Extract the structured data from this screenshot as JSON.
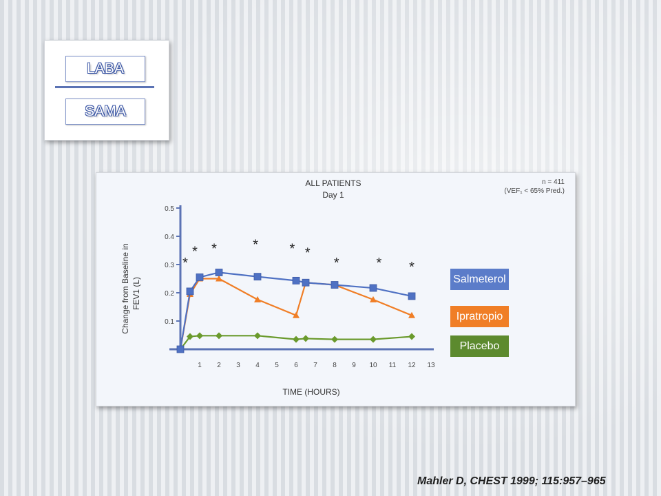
{
  "slide": {
    "abbreviations": [
      "LABA",
      "SAMA"
    ],
    "citation": "Mahler D, CHEST 1999; 115:957–965"
  },
  "chart_data": {
    "type": "line",
    "title": "ALL PATIENTS",
    "subtitle": "Day 1",
    "annotation_line1": "n = 411",
    "annotation_line2": "(VEF₁ < 65% Pred.)",
    "xlabel": "TIME (HOURS)",
    "ylabel_line1": "Change from Baseline in",
    "ylabel_line2": "FEV1 (L)",
    "xlim": [
      0,
      13
    ],
    "ylim": [
      0,
      0.5
    ],
    "xticks": [
      "1",
      "2",
      "3",
      "4",
      "5",
      "6",
      "7",
      "8",
      "9",
      "10",
      "11",
      "12",
      "13"
    ],
    "yticks": [
      "0.1",
      "0.2",
      "0.3",
      "0.4",
      "0.5"
    ],
    "grid": false,
    "legend_position": "right",
    "series": [
      {
        "name": "Salmeterol",
        "color": "#4f71c3",
        "marker": "square",
        "points": [
          [
            0,
            0
          ],
          [
            0.5,
            0.205
          ],
          [
            1,
            0.255
          ],
          [
            2,
            0.272
          ],
          [
            4,
            0.257
          ],
          [
            6,
            0.243
          ],
          [
            6.5,
            0.236
          ],
          [
            8,
            0.228
          ],
          [
            10,
            0.217
          ],
          [
            12,
            0.188
          ]
        ]
      },
      {
        "name": "Ipratropio",
        "color": "#f07e26",
        "marker": "triangle",
        "points": [
          [
            0,
            0
          ],
          [
            0.5,
            0.195
          ],
          [
            1,
            0.25
          ],
          [
            2,
            0.25
          ],
          [
            4,
            0.176
          ],
          [
            6,
            0.12
          ],
          [
            6.5,
            0.236
          ],
          [
            8,
            0.228
          ],
          [
            10,
            0.176
          ],
          [
            12,
            0.12
          ]
        ]
      },
      {
        "name": "Placebo",
        "color": "#6a9a2c",
        "marker": "diamond",
        "points": [
          [
            0,
            0
          ],
          [
            0.5,
            0.045
          ],
          [
            1,
            0.048
          ],
          [
            2,
            0.048
          ],
          [
            4,
            0.048
          ],
          [
            6,
            0.035
          ],
          [
            6.5,
            0.038
          ],
          [
            8,
            0.035
          ],
          [
            10,
            0.035
          ],
          [
            12,
            0.045
          ]
        ]
      }
    ],
    "significance_markers": [
      {
        "x": 0.25,
        "y": 0.31,
        "label": "*"
      },
      {
        "x": 0.75,
        "y": 0.35,
        "label": "*"
      },
      {
        "x": 1.75,
        "y": 0.36,
        "label": "*"
      },
      {
        "x": 3.9,
        "y": 0.375,
        "label": "*"
      },
      {
        "x": 5.8,
        "y": 0.36,
        "label": "*"
      },
      {
        "x": 6.6,
        "y": 0.345,
        "label": "*"
      },
      {
        "x": 8.1,
        "y": 0.31,
        "label": "*"
      },
      {
        "x": 10.3,
        "y": 0.31,
        "label": "*"
      },
      {
        "x": 12,
        "y": 0.295,
        "label": "*"
      }
    ]
  }
}
